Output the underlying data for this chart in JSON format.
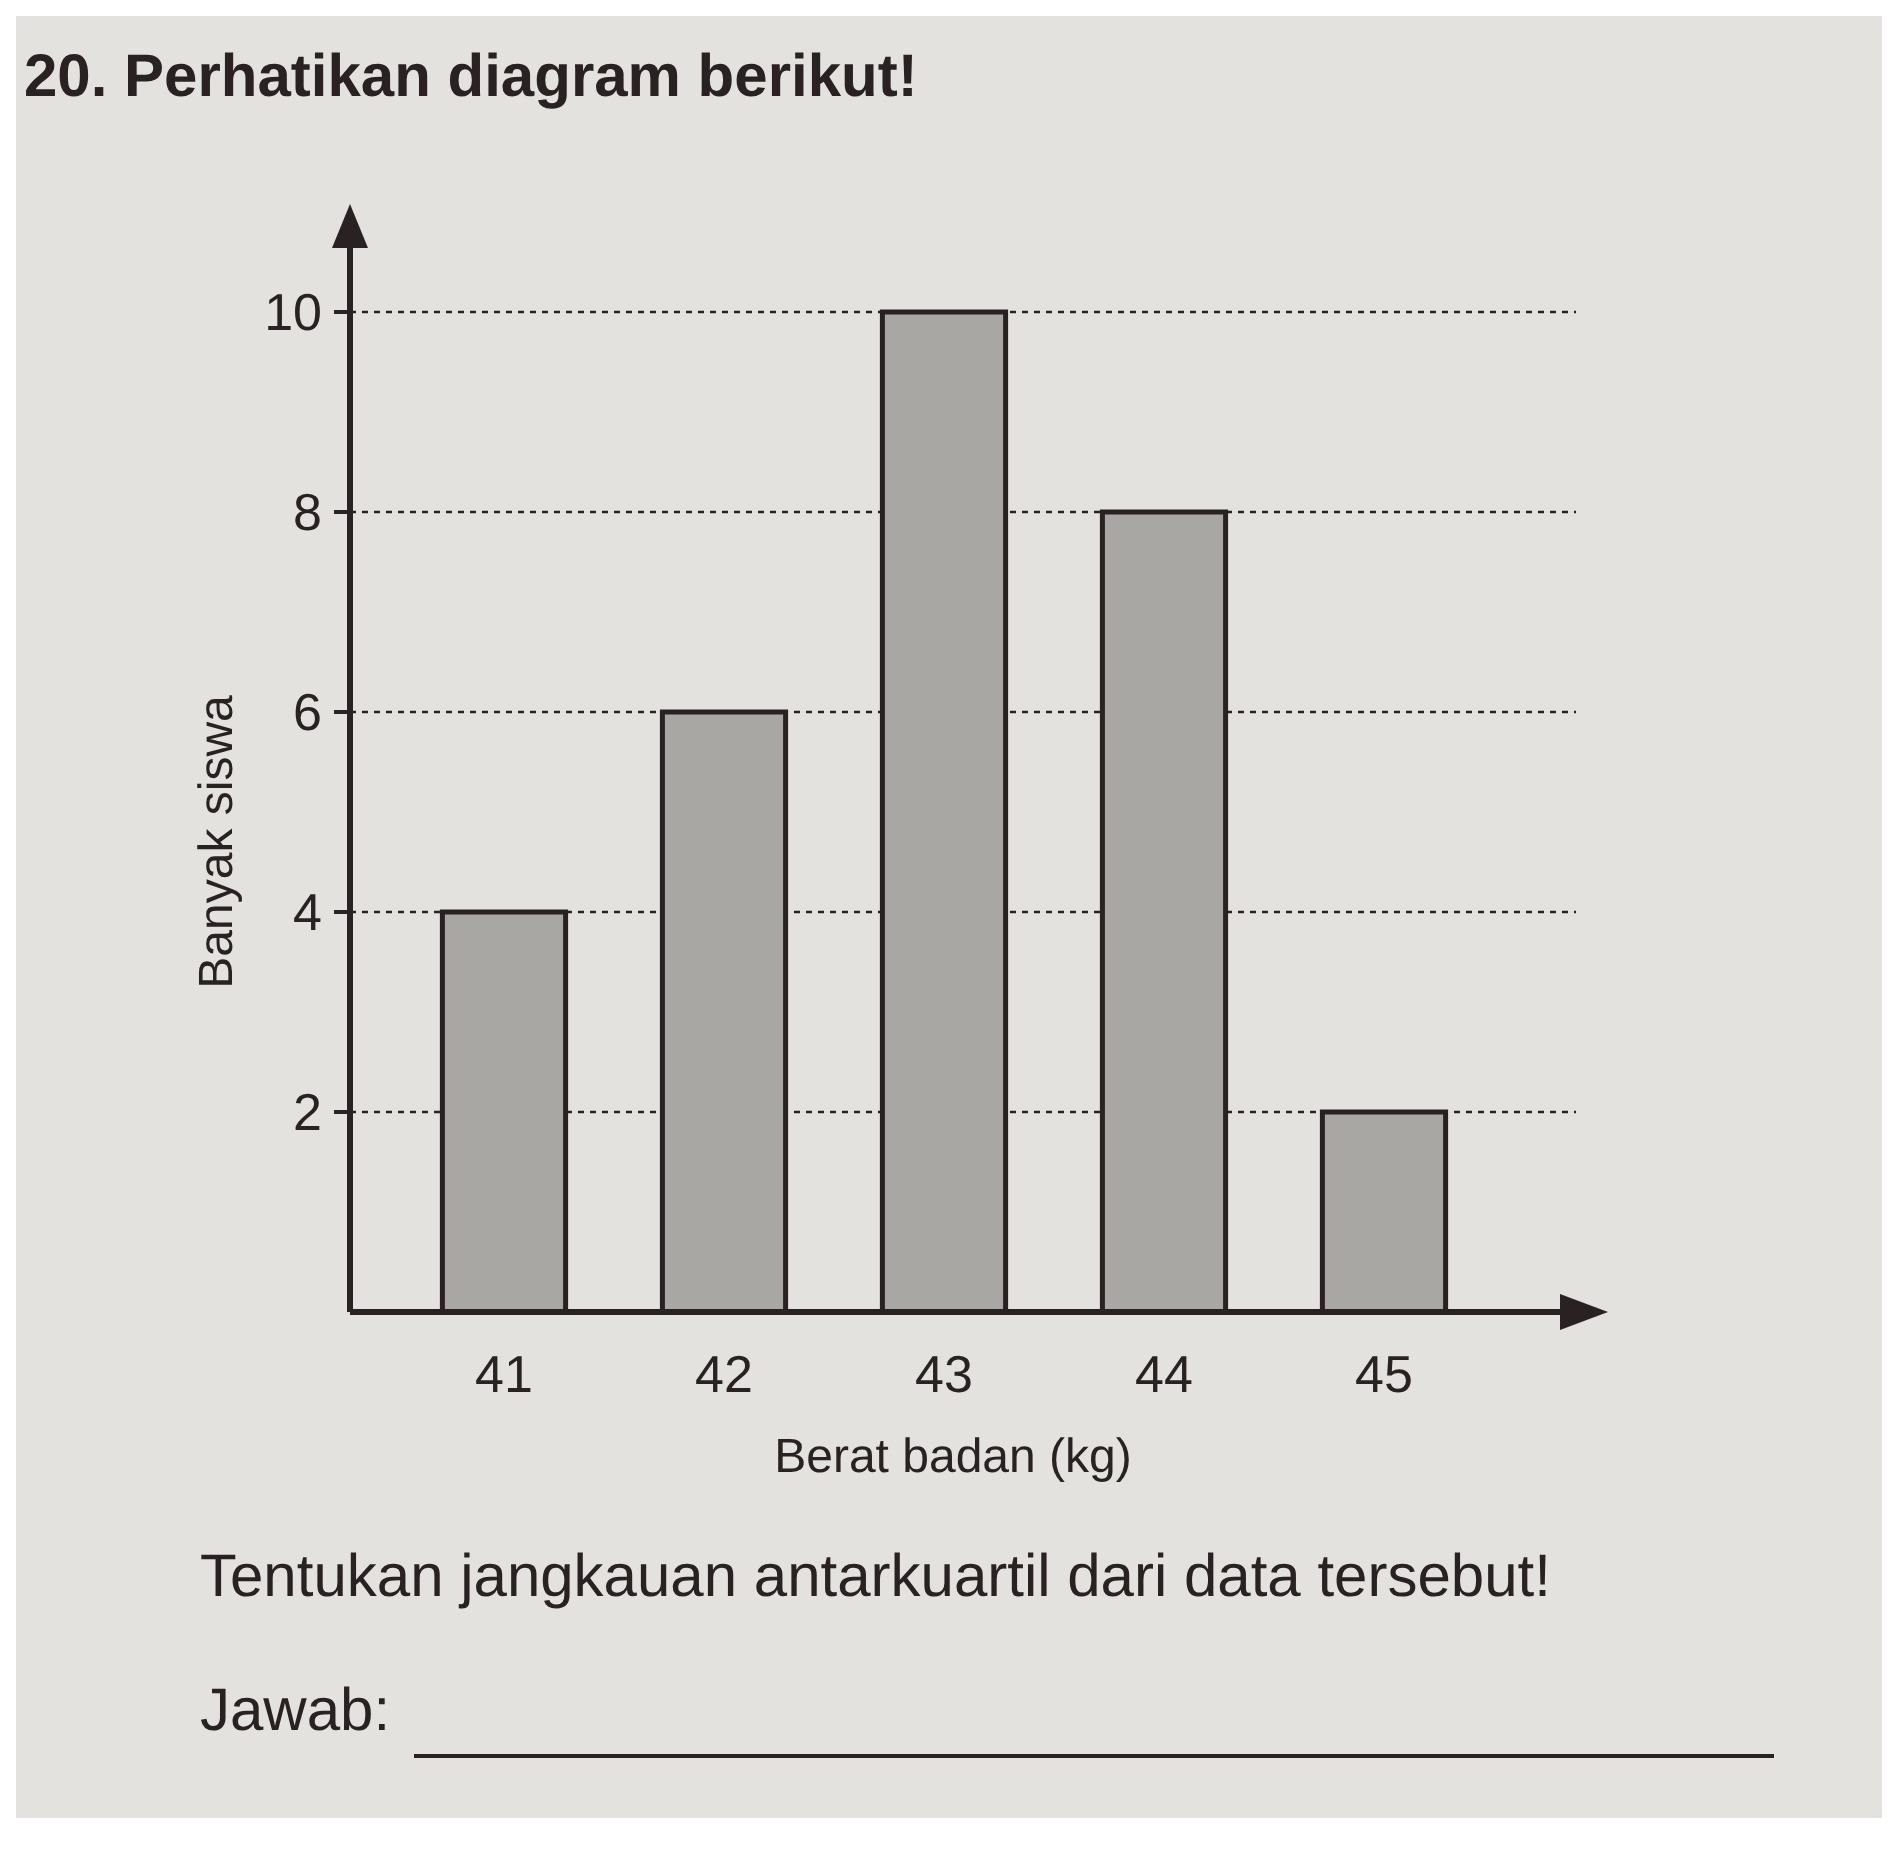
{
  "chart_data": {
    "type": "bar",
    "title": "20. Perhatikan diagram berikut!",
    "xlabel": "Berat badan (kg)",
    "ylabel": "Banyak siswa",
    "categories": [
      "41",
      "42",
      "43",
      "44",
      "45"
    ],
    "values": [
      4,
      6,
      10,
      8,
      2
    ],
    "color": "#a9a7a4",
    "ylim": [
      0,
      11
    ],
    "yticks": [
      2,
      4,
      6,
      8,
      10
    ],
    "grid": "y",
    "annotations": [
      "Tentukan jangkauan antarkuartil dari data tersebut!",
      "Jawab:"
    ]
  }
}
